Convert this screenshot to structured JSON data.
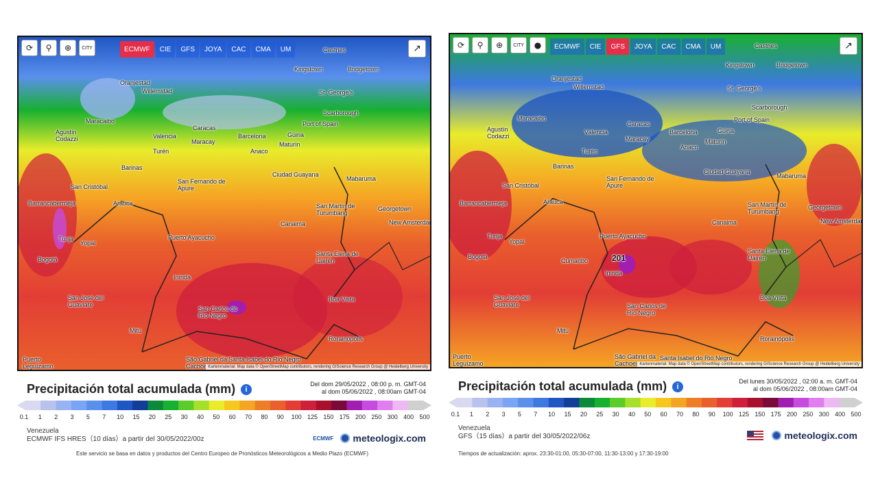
{
  "colors": {
    "active_model": "#e52e4a",
    "accent": "#2566d8",
    "border": "#111111"
  },
  "toolbar_icons": [
    "refresh-icon",
    "location-pin-icon",
    "zoom-icon",
    "city-icon"
  ],
  "city_toggle_label": "CITY",
  "share_icon": "share-icon",
  "scale": {
    "labels": [
      "0.1",
      "1",
      "2",
      "3",
      "5",
      "7",
      "10",
      "15",
      "20",
      "25",
      "30",
      "40",
      "50",
      "60",
      "70",
      "80",
      "90",
      "100",
      "125",
      "150",
      "175",
      "200",
      "250",
      "300",
      "400",
      "500"
    ],
    "colors": [
      "#d9d9ef",
      "#b7c3ec",
      "#99b3f2",
      "#7aa4f4",
      "#5a90ec",
      "#3d79e0",
      "#1f56c4",
      "#123d98",
      "#0a8a3a",
      "#18b030",
      "#5ccc2a",
      "#a6e02a",
      "#e8ec2a",
      "#f6c81e",
      "#f5a524",
      "#ee7e26",
      "#e9602c",
      "#e23e35",
      "#ce1f3c",
      "#a8102e",
      "#7a0a3a",
      "#a11eb0",
      "#c64ce0",
      "#e07ef0",
      "#eeb8f5",
      "#d0d0d0"
    ]
  },
  "left": {
    "models": [
      "ECMWF",
      "CIE",
      "GFS",
      "JOYA",
      "CAC",
      "CMA",
      "UM"
    ],
    "active_model": "ECMWF",
    "title": "Precipitación total acumulada (mm)",
    "period_line1": "Del dom 29/05/2022 , 08:00 p. m. GMT-04",
    "period_line2": "al dom 05/06/2022 , 08:00am GMT-04",
    "region": "Venezuela",
    "run": "ECMWF IFS HRES（10 días）a partir del 30/05/2022/00z",
    "brand": "meteologix.com",
    "badge": "ECMWF",
    "footnote": "Este servicio se basa en datos y productos del Centro Europeo de Pronósticos Meteorológicos a Medio Plazo (ECMWF)",
    "attribution": "Kartenmaterial: Map data © OpenStreetMap contributors, rendering GIScience Research Group @ Heidelberg University"
  },
  "right": {
    "models": [
      "ECMWF",
      "CIE",
      "GFS",
      "JOYA",
      "CAC",
      "CMA",
      "UM"
    ],
    "active_model": "GFS",
    "title": "Precipitación total acumulada (mm)",
    "period_line1": "Del lunes 30/05/2022 , 02:00 a. m. GMT-04",
    "period_line2": "al dom 05/06/2022 , 08:00am GMT-04",
    "region": "Venezuela",
    "run": "GFS（15 días）a partir del 30/05/2022/06z",
    "brand": "meteologix.com",
    "footnote": "Tiempos de actualización: aprox. 23:30-01:00, 05:30-07:00, 11:30-13:00 y 17:30-19:00",
    "attribution": "Kartenmaterial: Map data © OpenStreetMap contributors, rendering GIScience Research Group @ Heidelberg University",
    "max_label": "201"
  },
  "cities": [
    {
      "id": "castries",
      "name": "Castries"
    },
    {
      "id": "kingstown",
      "name": "Kingstown"
    },
    {
      "id": "bridgetown",
      "name": "Bridgetown"
    },
    {
      "id": "oranjestad",
      "name": "Oranjestad"
    },
    {
      "id": "willemstad",
      "name": "Willemstad"
    },
    {
      "id": "stgeorges",
      "name": "St. George's"
    },
    {
      "id": "scarborough",
      "name": "Scarborough"
    },
    {
      "id": "portofspain",
      "name": "Port of Spain"
    },
    {
      "id": "maracaibo",
      "name": "Maracaibo"
    },
    {
      "id": "valencia",
      "name": "Valencia"
    },
    {
      "id": "caracas",
      "name": "Caracas"
    },
    {
      "id": "maracay",
      "name": "Maracay"
    },
    {
      "id": "barcelona",
      "name": "Barcelona"
    },
    {
      "id": "guiria",
      "name": "Güiria"
    },
    {
      "id": "anaco",
      "name": "Anaco"
    },
    {
      "id": "maturin",
      "name": "Maturín"
    },
    {
      "id": "agustin",
      "name": "Agustín Codazzi"
    },
    {
      "id": "turen",
      "name": "Turén"
    },
    {
      "id": "barinas",
      "name": "Barinas"
    },
    {
      "id": "ciudadguayana",
      "name": "Ciudad Guayana"
    },
    {
      "id": "mabaruma",
      "name": "Mabaruma"
    },
    {
      "id": "sanfernando",
      "name": "San Fernando de Apure"
    },
    {
      "id": "sancristobal",
      "name": "San Cristóbal"
    },
    {
      "id": "barrancabermeja",
      "name": "Barrancabermeja"
    },
    {
      "id": "arauca",
      "name": "Arauca"
    },
    {
      "id": "sanmartin",
      "name": "San Martín de Turumbang"
    },
    {
      "id": "georgetown",
      "name": "Georgetown"
    },
    {
      "id": "newamsterdam",
      "name": "New Amsterdam"
    },
    {
      "id": "canaima",
      "name": "Canaima"
    },
    {
      "id": "tunja",
      "name": "Tunja"
    },
    {
      "id": "yopal",
      "name": "Yopal"
    },
    {
      "id": "puertoayacucho",
      "name": "Puerto Ayacucho"
    },
    {
      "id": "bogota",
      "name": "Bogotá"
    },
    {
      "id": "cumaribo",
      "name": "Cumaribo"
    },
    {
      "id": "inirida",
      "name": "Inírida"
    },
    {
      "id": "santaelena",
      "name": "Santa Elena de Uairén"
    },
    {
      "id": "sanjose",
      "name": "San José del Guaviare"
    },
    {
      "id": "sancarlos",
      "name": "San Carlos de Río Negro"
    },
    {
      "id": "boavista",
      "name": "Boa Vista"
    },
    {
      "id": "mitu",
      "name": "Mitú"
    },
    {
      "id": "rorainopolis",
      "name": "Rorainópolis"
    },
    {
      "id": "saogabriel",
      "name": "São Gabriel da Cachoeira"
    },
    {
      "id": "santaisabel",
      "name": "Santa Isabel do Rio Negro"
    },
    {
      "id": "puertoleguizamo",
      "name": "Puerto Leguízamo"
    }
  ]
}
